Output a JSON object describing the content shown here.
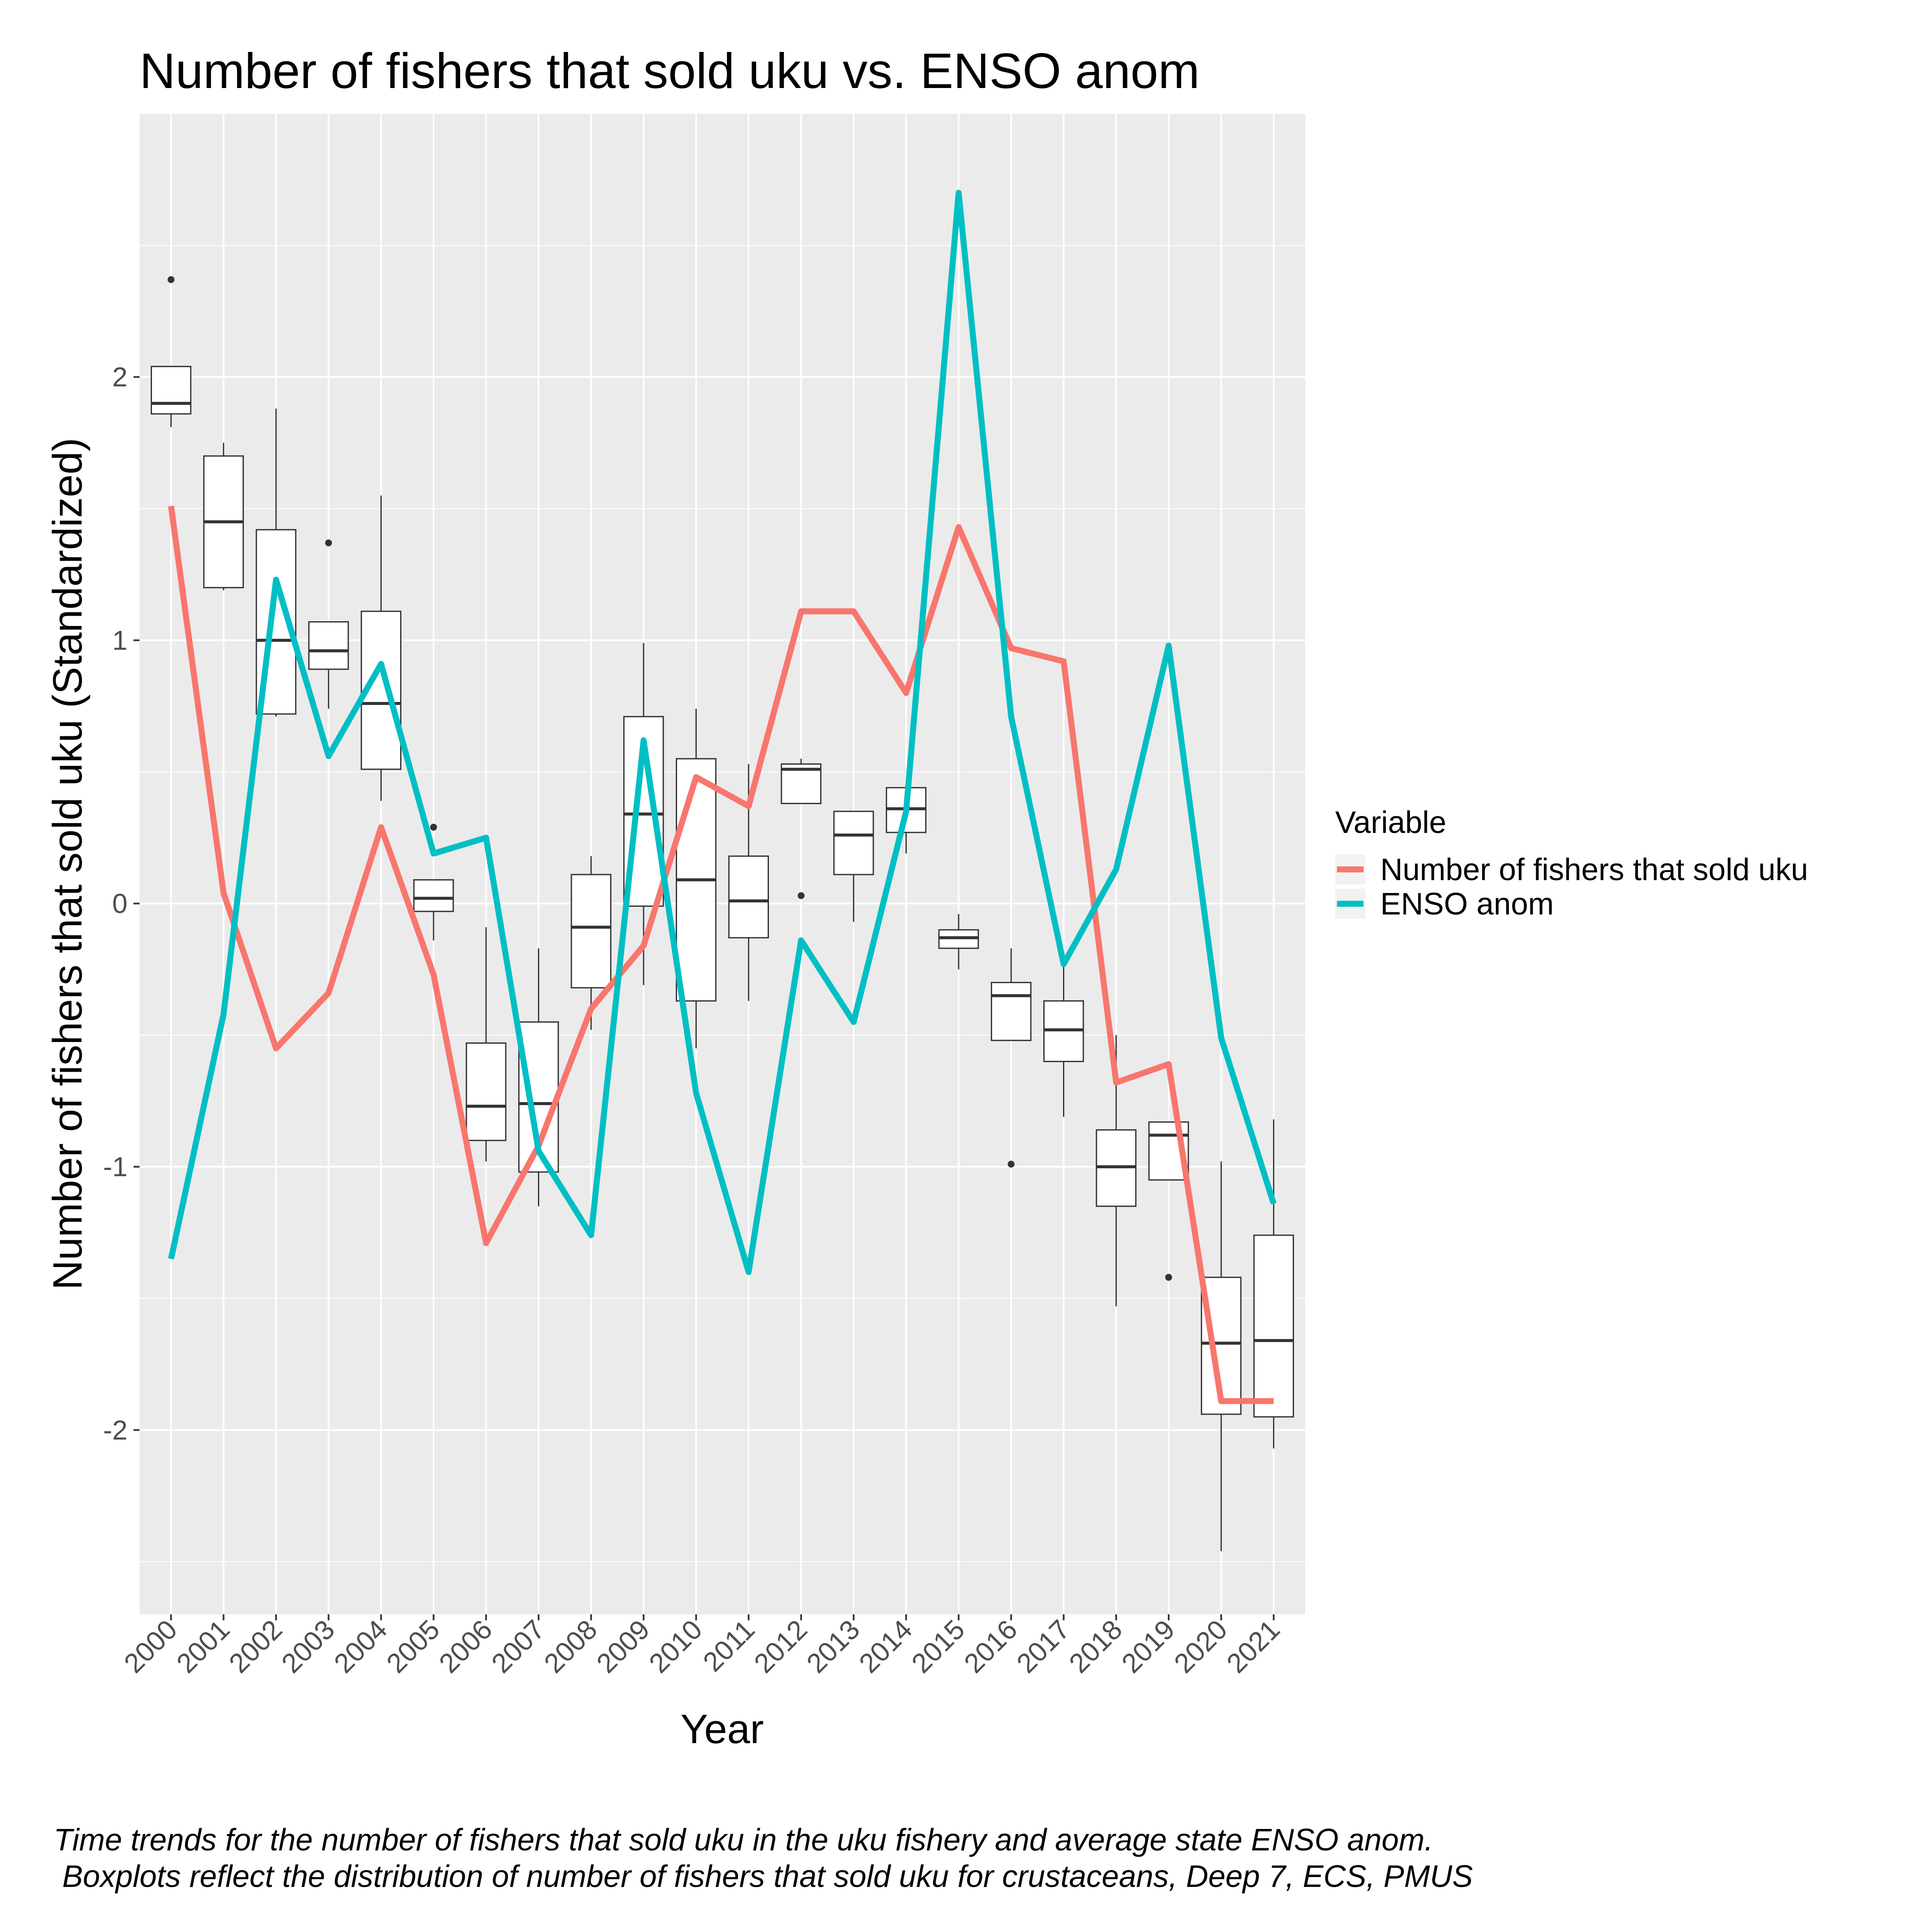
{
  "chart_data": {
    "type": "line",
    "title": "Number of fishers that sold uku vs. ENSO anom",
    "xlabel": "Year",
    "ylabel": "Number of fishers that sold uku (Standardized)",
    "ylim": [
      -2.7,
      3.0
    ],
    "yticks": [
      "-2",
      "-1",
      "0",
      "1",
      "2"
    ],
    "categories": [
      "2000",
      "2001",
      "2002",
      "2003",
      "2004",
      "2005",
      "2006",
      "2007",
      "2008",
      "2009",
      "2010",
      "2011",
      "2012",
      "2013",
      "2014",
      "2015",
      "2016",
      "2017",
      "2018",
      "2019",
      "2020",
      "2021"
    ],
    "series": [
      {
        "name": "Number of fishers that sold uku",
        "color": "#F8766D",
        "values": [
          1.51,
          0.04,
          -0.55,
          -0.34,
          0.29,
          -0.27,
          -1.29,
          -0.92,
          -0.4,
          -0.16,
          0.48,
          0.37,
          1.11,
          1.11,
          0.8,
          1.43,
          0.97,
          0.92,
          -0.68,
          -0.61,
          -1.89,
          -1.89
        ]
      },
      {
        "name": "ENSO anom",
        "color": "#00BFC4",
        "values": [
          -1.35,
          -0.42,
          1.23,
          0.56,
          0.91,
          0.19,
          0.25,
          -0.94,
          -1.26,
          0.62,
          -0.72,
          -1.4,
          -0.14,
          -0.45,
          0.35,
          2.7,
          0.71,
          -0.23,
          0.13,
          0.98,
          -0.51,
          -1.14
        ]
      }
    ],
    "boxplots": [
      {
        "x": "2000",
        "q1": 1.86,
        "median": 1.9,
        "q3": 2.04,
        "whisker_low": 1.81,
        "whisker_high": 2.04,
        "outliers": [
          2.37
        ]
      },
      {
        "x": "2001",
        "q1": 1.2,
        "median": 1.45,
        "q3": 1.7,
        "whisker_low": 1.19,
        "whisker_high": 1.75,
        "outliers": []
      },
      {
        "x": "2002",
        "q1": 0.72,
        "median": 1.0,
        "q3": 1.42,
        "whisker_low": 0.71,
        "whisker_high": 1.88,
        "outliers": []
      },
      {
        "x": "2003",
        "q1": 0.89,
        "median": 0.96,
        "q3": 1.07,
        "whisker_low": 0.74,
        "whisker_high": 1.07,
        "outliers": [
          1.37
        ]
      },
      {
        "x": "2004",
        "q1": 0.51,
        "median": 0.76,
        "q3": 1.11,
        "whisker_low": 0.39,
        "whisker_high": 1.55,
        "outliers": []
      },
      {
        "x": "2005",
        "q1": -0.03,
        "median": 0.02,
        "q3": 0.09,
        "whisker_low": -0.14,
        "whisker_high": 0.09,
        "outliers": [
          0.29
        ]
      },
      {
        "x": "2006",
        "q1": -0.9,
        "median": -0.77,
        "q3": -0.53,
        "whisker_low": -0.98,
        "whisker_high": -0.09,
        "outliers": []
      },
      {
        "x": "2007",
        "q1": -1.02,
        "median": -0.76,
        "q3": -0.45,
        "whisker_low": -1.15,
        "whisker_high": -0.17,
        "outliers": []
      },
      {
        "x": "2008",
        "q1": -0.32,
        "median": -0.09,
        "q3": 0.11,
        "whisker_low": -0.48,
        "whisker_high": 0.18,
        "outliers": []
      },
      {
        "x": "2009",
        "q1": -0.01,
        "median": 0.34,
        "q3": 0.71,
        "whisker_low": -0.31,
        "whisker_high": 0.99,
        "outliers": []
      },
      {
        "x": "2010",
        "q1": -0.37,
        "median": 0.09,
        "q3": 0.55,
        "whisker_low": -0.55,
        "whisker_high": 0.74,
        "outliers": []
      },
      {
        "x": "2011",
        "q1": -0.13,
        "median": 0.01,
        "q3": 0.18,
        "whisker_low": -0.37,
        "whisker_high": 0.53,
        "outliers": []
      },
      {
        "x": "2012",
        "q1": 0.38,
        "median": 0.51,
        "q3": 0.53,
        "whisker_low": 0.38,
        "whisker_high": 0.55,
        "outliers": [
          0.03
        ]
      },
      {
        "x": "2013",
        "q1": 0.11,
        "median": 0.26,
        "q3": 0.35,
        "whisker_low": -0.07,
        "whisker_high": 0.35,
        "outliers": []
      },
      {
        "x": "2014",
        "q1": 0.27,
        "median": 0.36,
        "q3": 0.44,
        "whisker_low": 0.19,
        "whisker_high": 0.44,
        "outliers": []
      },
      {
        "x": "2015",
        "q1": -0.17,
        "median": -0.13,
        "q3": -0.1,
        "whisker_low": -0.25,
        "whisker_high": -0.04,
        "outliers": []
      },
      {
        "x": "2016",
        "q1": -0.52,
        "median": -0.35,
        "q3": -0.3,
        "whisker_low": -0.52,
        "whisker_high": -0.17,
        "outliers": [
          -0.99
        ]
      },
      {
        "x": "2017",
        "q1": -0.6,
        "median": -0.48,
        "q3": -0.37,
        "whisker_low": -0.81,
        "whisker_high": -0.23,
        "outliers": []
      },
      {
        "x": "2018",
        "q1": -1.15,
        "median": -1.0,
        "q3": -0.86,
        "whisker_low": -1.53,
        "whisker_high": -0.5,
        "outliers": []
      },
      {
        "x": "2019",
        "q1": -1.05,
        "median": -0.88,
        "q3": -0.83,
        "whisker_low": -1.05,
        "whisker_high": -0.83,
        "outliers": [
          -1.42
        ]
      },
      {
        "x": "2020",
        "q1": -1.94,
        "median": -1.67,
        "q3": -1.42,
        "whisker_low": -2.46,
        "whisker_high": -0.98,
        "outliers": []
      },
      {
        "x": "2021",
        "q1": -1.95,
        "median": -1.66,
        "q3": -1.26,
        "whisker_low": -2.07,
        "whisker_high": -0.82,
        "outliers": []
      }
    ],
    "legend": {
      "title": "Variable",
      "position": "right",
      "entries": [
        "Number of fishers that sold uku",
        "ENSO anom"
      ]
    },
    "grid": true,
    "panel_background": "#EBEBEB",
    "caption_lines": [
      "Time trends for the number of fishers that sold uku in the uku fishery and average state ENSO anom.",
      " Boxplots reflect the distribution of number of fishers that sold uku for crustaceans, Deep 7, ECS, PMUS"
    ]
  }
}
